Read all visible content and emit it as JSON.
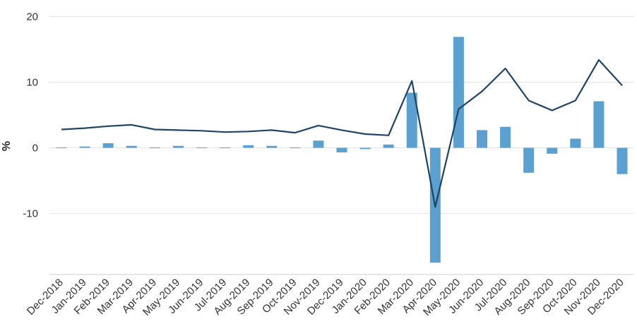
{
  "chart_data": {
    "type": "bar",
    "ylabel": "%",
    "ylim": [
      -20,
      20
    ],
    "yticks": [
      -10,
      0,
      10,
      20
    ],
    "grid": true,
    "categories": [
      "Dec-2018",
      "Jan-2019",
      "Feb-2019",
      "Mar-2019",
      "Apr-2019",
      "May-2019",
      "Jun-2019",
      "Jul-2019",
      "Aug-2019",
      "Sep-2019",
      "Oct-2019",
      "Nov-2019",
      "Dec-2019",
      "Jan-2020",
      "Feb-2020",
      "Mar-2020",
      "Apr-2020",
      "May-2020",
      "Jun-2020",
      "Jul-2020",
      "Aug-2020",
      "Sep-2020",
      "Oct-2020",
      "Nov-2020",
      "Dec-2020"
    ],
    "series": [
      {
        "type": "bar",
        "color": "#5aa0d0",
        "values": [
          -0.1,
          0.2,
          0.7,
          0.3,
          -0.1,
          0.3,
          0.0,
          0.0,
          0.4,
          0.3,
          0.0,
          1.1,
          -0.7,
          -0.2,
          0.5,
          8.4,
          -17.5,
          16.9,
          2.7,
          3.2,
          -3.8,
          -0.9,
          1.4,
          7.1,
          -4.0
        ]
      },
      {
        "type": "line",
        "color": "#1f4466",
        "values": [
          2.8,
          3.0,
          3.3,
          3.5,
          2.8,
          2.7,
          2.6,
          2.4,
          2.5,
          2.7,
          2.3,
          3.4,
          2.7,
          2.1,
          1.9,
          10.2,
          -9.0,
          5.9,
          8.6,
          12.1,
          7.2,
          5.7,
          7.2,
          13.4,
          9.5
        ]
      }
    ]
  }
}
